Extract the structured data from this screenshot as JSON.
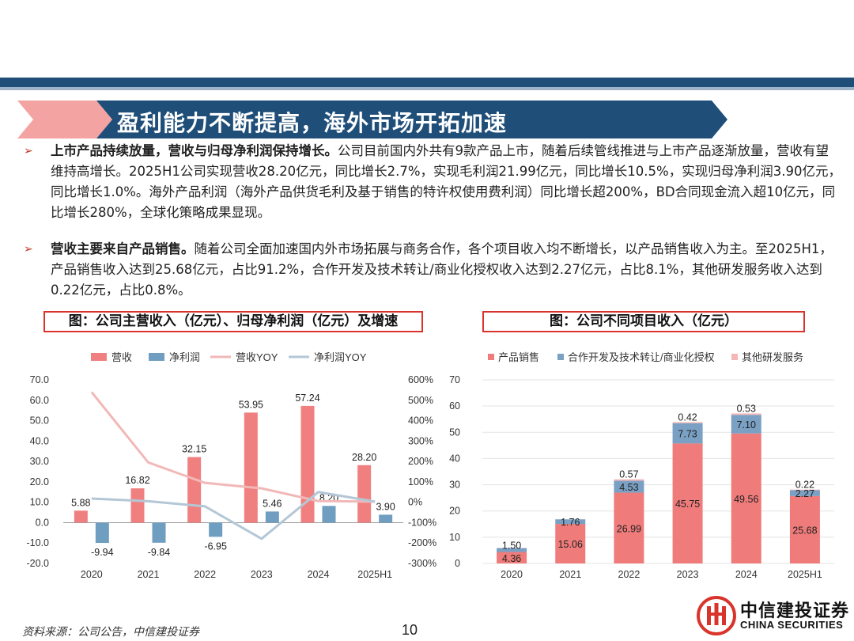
{
  "banner": {
    "title": "盈利能力不断提高，海外市场开拓加速"
  },
  "bullets": [
    {
      "bold": "上市产品持续放量，营收与归母净利润保持增长。",
      "text": "公司目前国内外共有9款产品上市，随着后续管线推进与上市产品逐渐放量，营收有望维持高增长。2025H1公司实现营收28.20亿元，同比增长2.7%，实现毛利润21.99亿元，同比增长10.5%，实现归母净利润3.90亿元，同比增长1.0%。海外产品利润（海外产品供货毛利及基于销售的特许权使用费利润）同比增长超200%，BD合同现金流入超10亿元，同比增长280%，全球化策略成果显现。"
    },
    {
      "bold": "营收主要来自产品销售。",
      "text": "随着公司全面加速国内外市场拓展与商务合作，各个项目收入均不断增长，以产品销售收入为主。至2025H1，产品销售收入达到25.68亿元，占比91.2%，合作开发及技术转让/商业化授权收入达到2.27亿元，占比8.1%，其他研发服务收入达到0.22亿元，占比0.8%。"
    }
  ],
  "captions": {
    "chart1": "图：公司主营收入（亿元）、归母净利润（亿元）及增速",
    "chart2": "图：公司不同项目收入（亿元）"
  },
  "colors": {
    "revenue": "#f08080",
    "profit": "#6f9ec0",
    "revenue_yoy": "#f2b8b8",
    "profit_yoy": "#b4c7d6",
    "product": "#f07b7b",
    "coop": "#7aa0c4",
    "other": "#f4b6b6",
    "navy": "#1f4e79",
    "red": "#d9342b"
  },
  "chart_data": [
    {
      "type": "bar",
      "title": "图：公司主营收入（亿元）、归母净利润（亿元）及增速",
      "categories": [
        "2020",
        "2021",
        "2022",
        "2023",
        "2024",
        "2025H1"
      ],
      "series": [
        {
          "name": "营收",
          "kind": "bar",
          "values": [
            5.88,
            16.82,
            32.15,
            53.95,
            57.24,
            28.2
          ],
          "labels": [
            "5.88",
            "16.82",
            "32.15",
            "53.95",
            "57.24",
            "28.20"
          ]
        },
        {
          "name": "净利润",
          "kind": "bar",
          "values": [
            -9.94,
            -9.84,
            -6.95,
            5.46,
            8.2,
            3.9
          ],
          "labels": [
            "-9.94",
            "-9.84",
            "-6.95",
            "5.46",
            "8.20",
            "3.90"
          ]
        },
        {
          "name": "营收YOY",
          "kind": "line",
          "axis": "right",
          "values": [
            540,
            195,
            95,
            68,
            6,
            3
          ]
        },
        {
          "name": "净利润YOY",
          "kind": "line",
          "axis": "right",
          "values": [
            18,
            5,
            -20,
            -179,
            50,
            3
          ]
        }
      ],
      "ylim": [
        -20,
        70
      ],
      "yticks": [
        "70.0",
        "60.0",
        "50.0",
        "40.0",
        "30.0",
        "20.0",
        "10.0",
        "0.0",
        "-10.0",
        "-20.0"
      ],
      "y2lim": [
        -300,
        600
      ],
      "y2ticks": [
        "600%",
        "500%",
        "400%",
        "300%",
        "200%",
        "100%",
        "0%",
        "-100%",
        "-200%",
        "-300%"
      ],
      "legend": "top"
    },
    {
      "type": "bar",
      "stacked": true,
      "title": "图：公司不同项目收入（亿元）",
      "categories": [
        "2020",
        "2021",
        "2022",
        "2023",
        "2024",
        "2025H1"
      ],
      "series": [
        {
          "name": "产品销售",
          "values": [
            4.36,
            15.06,
            26.99,
            45.75,
            49.56,
            25.68
          ],
          "labels": [
            "4.36",
            "15.06",
            "26.99",
            "45.75",
            "49.56",
            "25.68"
          ]
        },
        {
          "name": "合作开发及技术转让/商业化授权",
          "values": [
            1.5,
            1.76,
            4.53,
            7.73,
            7.1,
            2.27
          ],
          "labels": [
            "1.50",
            "1.76",
            "4.53",
            "7.73",
            "7.10",
            "2.27"
          ]
        },
        {
          "name": "其他研发服务",
          "values": [
            0,
            0,
            0.57,
            0.42,
            0.53,
            0.22
          ],
          "labels": [
            "",
            "",
            "0.57",
            "0.42",
            "0.53",
            "0.22"
          ]
        }
      ],
      "ylim": [
        0,
        70
      ],
      "yticks": [
        "70",
        "60",
        "50",
        "40",
        "30",
        "20",
        "10",
        "0"
      ],
      "legend": "top"
    }
  ],
  "footer": {
    "source": "资料来源：公司公告，中信建投证券",
    "page": "10",
    "logo_cn": "中信建投证券",
    "logo_en": "CHINA SECURITIES"
  }
}
